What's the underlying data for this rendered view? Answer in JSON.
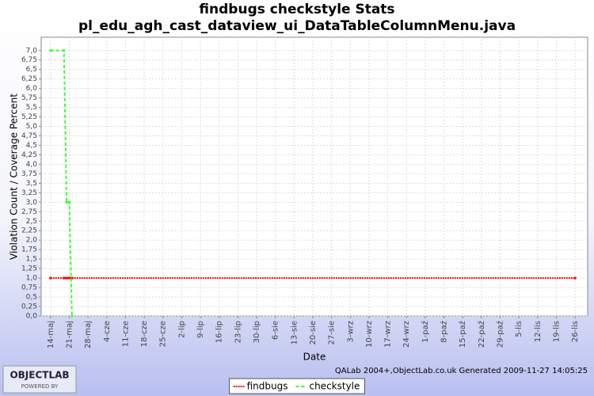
{
  "chart_data": {
    "type": "line",
    "title": "findbugs checkstyle  Stats",
    "subtitle": "pl_edu_agh_cast_dataview_ui_DataTableColumnMenu.java",
    "x_label": "Date",
    "y_label": "Violation Count / Coverage Percent",
    "annotation": "QALab 2004+,ObjectLab.co.uk Generated 2009-11-27 14:05:25",
    "x": [
      0,
      5,
      6,
      7,
      8,
      196
    ],
    "series": [
      {
        "name": "findbugs",
        "color": "#ff0000",
        "values": [
          1,
          1,
          1,
          1,
          1,
          1
        ]
      },
      {
        "name": "checkstyle",
        "color": "#33ff33",
        "values": [
          7,
          7,
          3,
          3,
          0,
          null
        ]
      }
    ],
    "xlim": [
      -3.5,
      200.7
    ],
    "xticks": [
      {
        "value": 0,
        "label": "14-maj"
      },
      {
        "value": 7,
        "label": "21-maj"
      },
      {
        "value": 14,
        "label": "28-maj"
      },
      {
        "value": 21,
        "label": "4-cze"
      },
      {
        "value": 28,
        "label": "11-cze"
      },
      {
        "value": 35,
        "label": "18-cze"
      },
      {
        "value": 42,
        "label": "25-cze"
      },
      {
        "value": 49,
        "label": "2-lip"
      },
      {
        "value": 56,
        "label": "9-lip"
      },
      {
        "value": 63,
        "label": "16-lip"
      },
      {
        "value": 70,
        "label": "23-lip"
      },
      {
        "value": 77,
        "label": "30-lip"
      },
      {
        "value": 84,
        "label": "6-sie"
      },
      {
        "value": 91,
        "label": "13-sie"
      },
      {
        "value": 98,
        "label": "20-sie"
      },
      {
        "value": 105,
        "label": "27-sie"
      },
      {
        "value": 112,
        "label": "3-wrz"
      },
      {
        "value": 119,
        "label": "10-wrz"
      },
      {
        "value": 126,
        "label": "17-wrz"
      },
      {
        "value": 133,
        "label": "24-wrz"
      },
      {
        "value": 140,
        "label": "1-paź"
      },
      {
        "value": 147,
        "label": "8-paź"
      },
      {
        "value": 154,
        "label": "15-paź"
      },
      {
        "value": 161,
        "label": "22-paź"
      },
      {
        "value": 168,
        "label": "29-paź"
      },
      {
        "value": 175,
        "label": "5-lis"
      },
      {
        "value": 182,
        "label": "12-lis"
      },
      {
        "value": 189,
        "label": "19-lis"
      },
      {
        "value": 196,
        "label": "26-lis"
      }
    ],
    "ylim": [
      0,
      7.35
    ],
    "yticks": [
      {
        "value": 0,
        "label": "0,0"
      },
      {
        "value": 0.25,
        "label": "0,25"
      },
      {
        "value": 0.5,
        "label": "0,5"
      },
      {
        "value": 0.75,
        "label": "0,75"
      },
      {
        "value": 1,
        "label": "1,0"
      },
      {
        "value": 1.25,
        "label": "1,25"
      },
      {
        "value": 1.5,
        "label": "1,5"
      },
      {
        "value": 1.75,
        "label": "1,75"
      },
      {
        "value": 2,
        "label": "2,0"
      },
      {
        "value": 2.25,
        "label": "2,25"
      },
      {
        "value": 2.5,
        "label": "2,5"
      },
      {
        "value": 2.75,
        "label": "2,75"
      },
      {
        "value": 3,
        "label": "3,0"
      },
      {
        "value": 3.25,
        "label": "3,25"
      },
      {
        "value": 3.5,
        "label": "3,5"
      },
      {
        "value": 3.75,
        "label": "3,75"
      },
      {
        "value": 4,
        "label": "4,0"
      },
      {
        "value": 4.25,
        "label": "4,25"
      },
      {
        "value": 4.5,
        "label": "4,5"
      },
      {
        "value": 4.75,
        "label": "4,75"
      },
      {
        "value": 5,
        "label": "5,0"
      },
      {
        "value": 5.25,
        "label": "5,25"
      },
      {
        "value": 5.5,
        "label": "5,5"
      },
      {
        "value": 5.75,
        "label": "5,75"
      },
      {
        "value": 6,
        "label": "6,0"
      },
      {
        "value": 6.25,
        "label": "6,25"
      },
      {
        "value": 6.5,
        "label": "6,5"
      },
      {
        "value": 6.75,
        "label": "6,75"
      },
      {
        "value": 7,
        "label": "7,0"
      }
    ],
    "grid": true,
    "legend": "bottom"
  },
  "logo": {
    "brand": "OBJECTLAB",
    "tagline": "POWERED BY"
  }
}
